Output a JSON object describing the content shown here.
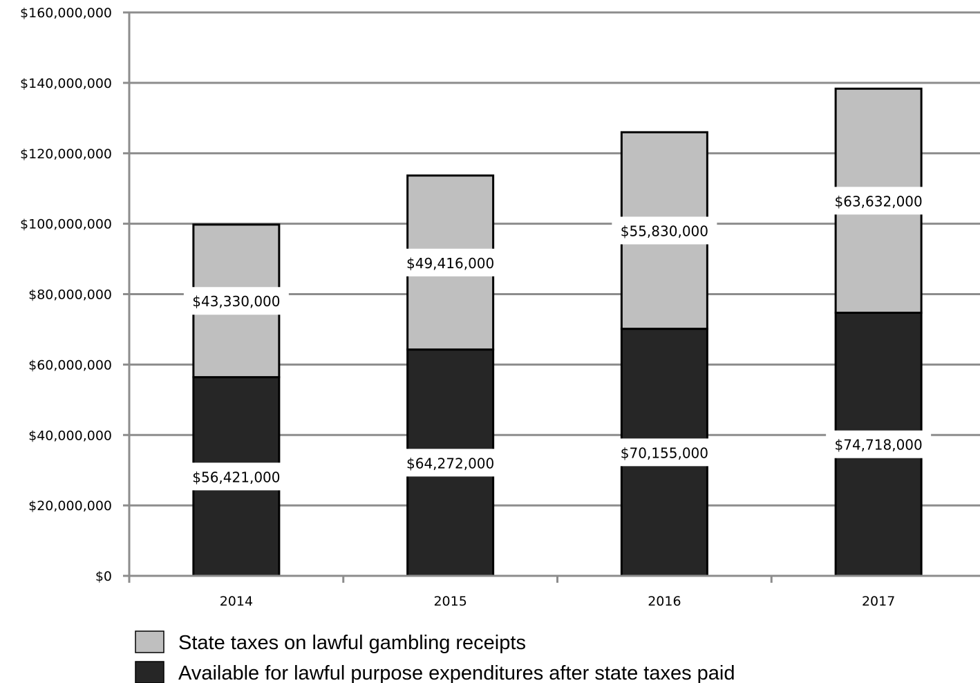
{
  "chart_data": {
    "type": "bar",
    "stacked": true,
    "categories": [
      "2014",
      "2015",
      "2016",
      "2017"
    ],
    "series": [
      {
        "name": "Available for lawful purpose expenditures after state taxes paid",
        "values": [
          56421000,
          64272000,
          70155000,
          74718000
        ],
        "labels": [
          "$56,421,000",
          "$64,272,000",
          "$70,155,000",
          "$74,718,000"
        ],
        "color": "#262626"
      },
      {
        "name": "State taxes on lawful gambling receipts",
        "values": [
          43330000,
          49416000,
          55830000,
          63632000
        ],
        "labels": [
          "$43,330,000",
          "$49,416,000",
          "$55,830,000",
          "$63,632,000"
        ],
        "color": "#bfbfbf"
      }
    ],
    "ylim": [
      0,
      160000000
    ],
    "yticks": [
      0,
      20000000,
      40000000,
      60000000,
      80000000,
      100000000,
      120000000,
      140000000,
      160000000
    ],
    "ytick_labels": [
      "$0",
      "$20,000,000",
      "$40,000,000",
      "$60,000,000",
      "$80,000,000",
      "$100,000,000",
      "$120,000,000",
      "$140,000,000",
      "$160,000,000"
    ],
    "grid": true,
    "legend_position": "bottom"
  }
}
